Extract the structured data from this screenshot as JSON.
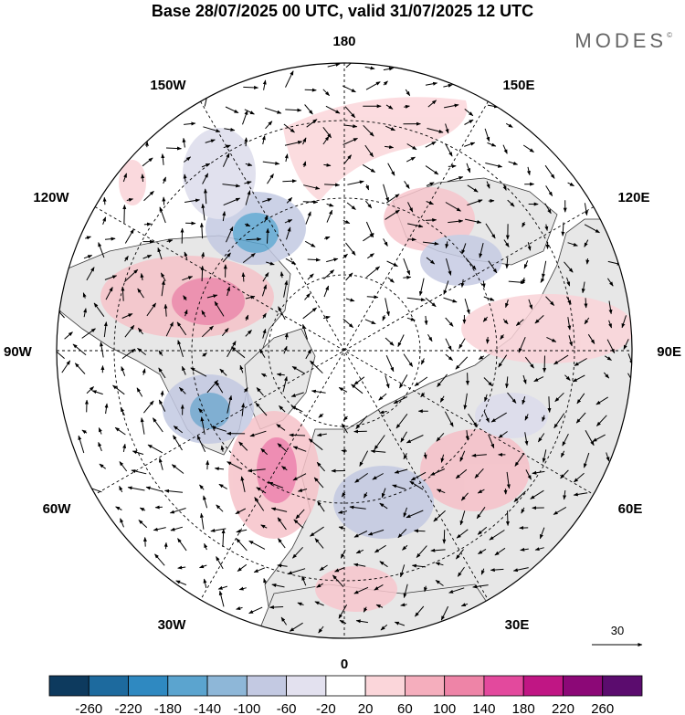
{
  "header": {
    "title": "Base 28/07/2025 00 UTC, valid 31/07/2025 12 UTC",
    "brand": "MODES",
    "brand_mark": "©"
  },
  "map": {
    "projection": "north-polar-stereographic",
    "longitude_labels": {
      "top": "180",
      "bottom": "0",
      "left": "90W",
      "right": "90E",
      "upper_left_1": "150W",
      "upper_left_2": "120W",
      "upper_right_1": "150E",
      "upper_right_2": "120E",
      "lower_left_1": "60W",
      "lower_left_2": "30W",
      "lower_right_1": "60E",
      "lower_right_2": "30E"
    },
    "wind_reference_label": "30"
  },
  "colorbar": {
    "colors": [
      "#0d3a5e",
      "#1d6a9e",
      "#2f89c1",
      "#5ba4cf",
      "#8eb7d8",
      "#c3c9e2",
      "#e3e1ef",
      "#ffffff",
      "#fbd6da",
      "#f5aebd",
      "#ee84a7",
      "#e3499d",
      "#c01684",
      "#8c0877",
      "#5b0c6e"
    ],
    "labels": [
      "-260",
      "-220",
      "-180",
      "-140",
      "-100",
      "-60",
      "-20",
      "20",
      "60",
      "100",
      "140",
      "180",
      "220",
      "260"
    ]
  }
}
